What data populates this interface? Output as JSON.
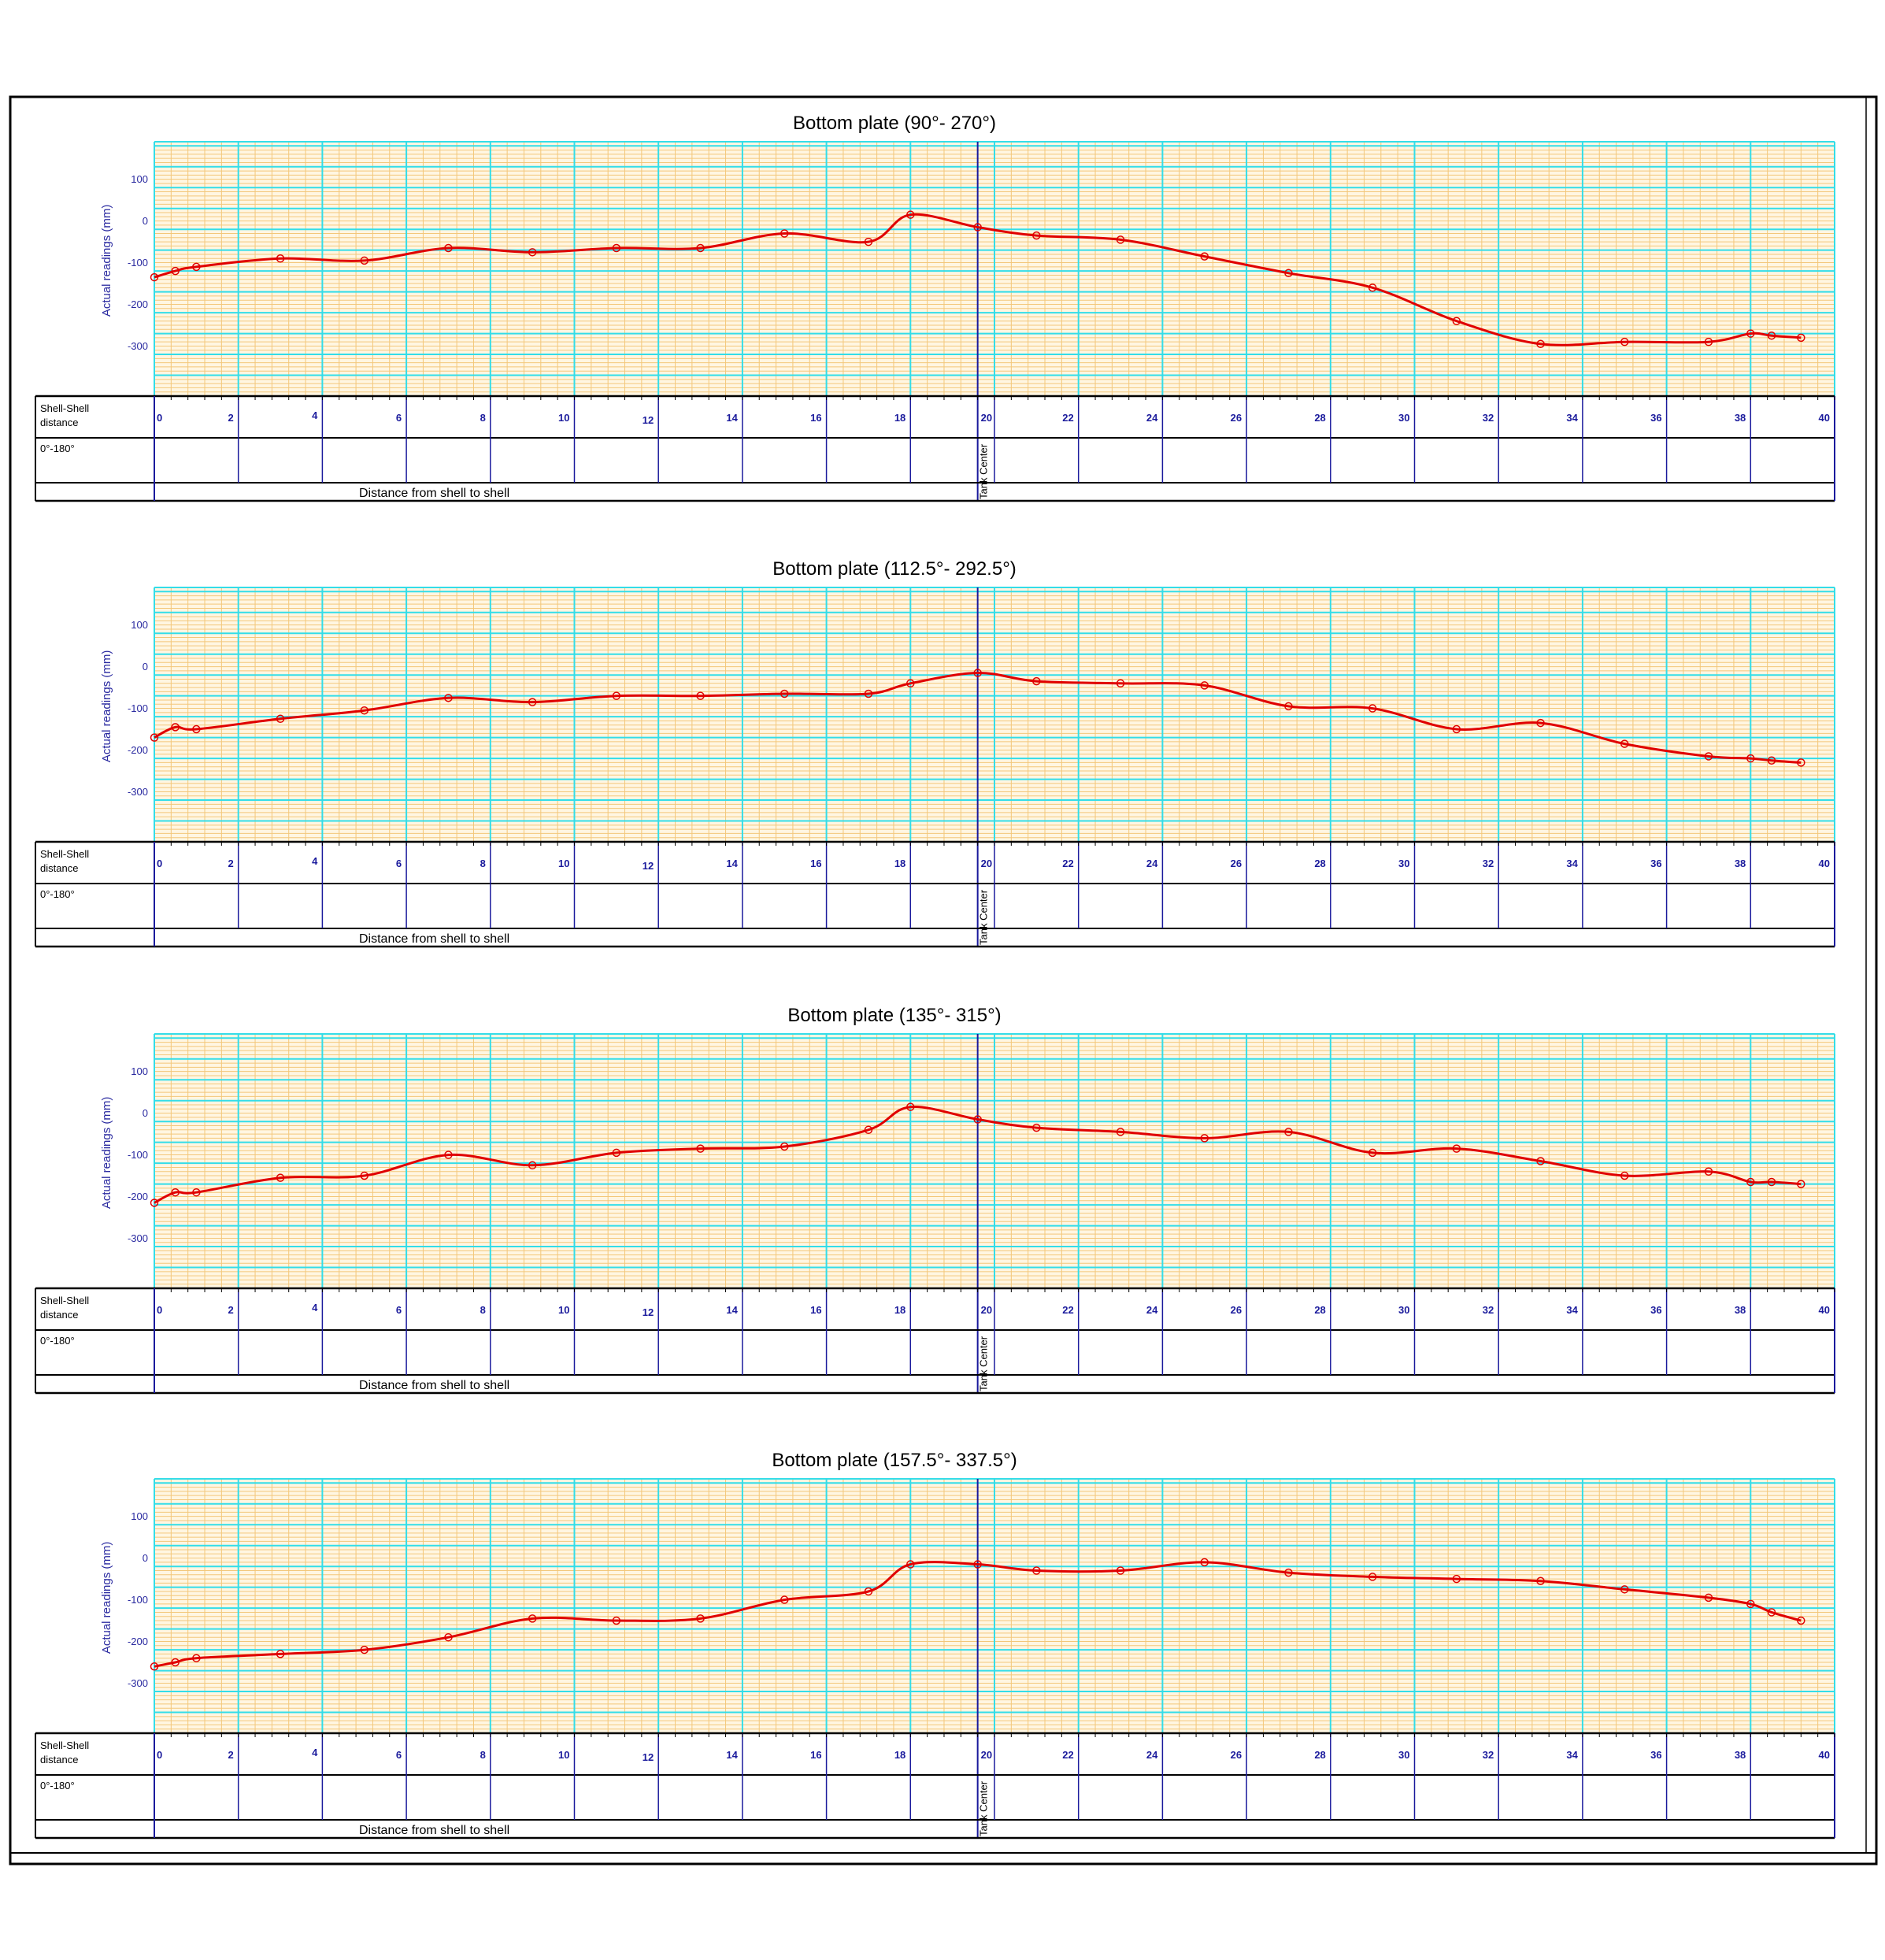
{
  "sheet": {
    "table_labels": {
      "row1": [
        "Shell-Shell",
        "distance"
      ],
      "row2": "0°-180°",
      "distance_caption": "Distance  from  shell to shell",
      "center_label": "Tank Center"
    }
  },
  "chart_data": [
    {
      "type": "line",
      "title": "Bottom plate  (90°- 270°)",
      "ylabel": "Actual readings (mm)",
      "xlim": [
        0,
        40
      ],
      "ylim": [
        -400,
        210
      ],
      "y_ticks": [
        100,
        0,
        -100,
        -200,
        -300
      ],
      "x_ticks": [
        0,
        2,
        4,
        6,
        8,
        10,
        12,
        14,
        16,
        18,
        20,
        22,
        24,
        26,
        28,
        30,
        32,
        34,
        36,
        38,
        40
      ],
      "grid": true,
      "series": [
        {
          "color": "#e00000",
          "x": [
            0,
            0.5,
            1,
            3,
            5,
            7,
            9,
            11,
            13,
            15,
            17,
            18,
            19.6,
            21,
            23,
            25,
            27,
            29,
            31,
            33,
            35,
            37,
            38,
            38.5,
            39.2
          ],
          "y": [
            -115,
            -100,
            -90,
            -70,
            -75,
            -45,
            -55,
            -45,
            -45,
            -10,
            -30,
            35,
            5,
            -15,
            -25,
            -65,
            -105,
            -140,
            -220,
            -275,
            -270,
            -270,
            -250,
            -255,
            -260
          ]
        }
      ]
    },
    {
      "type": "line",
      "title": "Bottom plate  (112.5°- 292.5°)",
      "ylabel": "Actual readings (mm)",
      "xlim": [
        0,
        40
      ],
      "ylim": [
        -400,
        210
      ],
      "y_ticks": [
        100,
        0,
        -100,
        -200,
        -300
      ],
      "x_ticks": [
        0,
        2,
        4,
        6,
        8,
        10,
        12,
        14,
        16,
        18,
        20,
        22,
        24,
        26,
        28,
        30,
        32,
        34,
        36,
        38,
        40
      ],
      "grid": true,
      "series": [
        {
          "color": "#e00000",
          "x": [
            0,
            0.5,
            1,
            3,
            5,
            7,
            9,
            11,
            13,
            15,
            17,
            18,
            19.6,
            21,
            23,
            25,
            27,
            29,
            31,
            33,
            35,
            37,
            38,
            38.5,
            39.2
          ],
          "y": [
            -150,
            -125,
            -130,
            -105,
            -85,
            -55,
            -65,
            -50,
            -50,
            -45,
            -45,
            -20,
            5,
            -15,
            -20,
            -25,
            -75,
            -80,
            -130,
            -115,
            -165,
            -195,
            -200,
            -205,
            -210
          ]
        }
      ]
    },
    {
      "type": "line",
      "title": "Bottom plate  (135°- 315°)",
      "ylabel": "Actual readings (mm)",
      "xlim": [
        0,
        40
      ],
      "ylim": [
        -400,
        210
      ],
      "y_ticks": [
        100,
        0,
        -100,
        -200,
        -300
      ],
      "x_ticks": [
        0,
        2,
        4,
        6,
        8,
        10,
        12,
        14,
        16,
        18,
        20,
        22,
        24,
        26,
        28,
        30,
        32,
        34,
        36,
        38,
        40
      ],
      "grid": true,
      "series": [
        {
          "color": "#e00000",
          "x": [
            0,
            0.5,
            1,
            3,
            5,
            7,
            9,
            11,
            13,
            15,
            17,
            18,
            19.6,
            21,
            23,
            25,
            27,
            29,
            31,
            33,
            35,
            37,
            38,
            38.5,
            39.2
          ],
          "y": [
            -195,
            -170,
            -170,
            -135,
            -130,
            -80,
            -105,
            -75,
            -65,
            -60,
            -20,
            35,
            5,
            -15,
            -25,
            -40,
            -25,
            -75,
            -65,
            -95,
            -130,
            -120,
            -145,
            -145,
            -150
          ]
        }
      ]
    },
    {
      "type": "line",
      "title": "Bottom plate  (157.5°- 337.5°)",
      "ylabel": "Actual readings (mm)",
      "xlim": [
        0,
        40
      ],
      "ylim": [
        -400,
        210
      ],
      "y_ticks": [
        100,
        0,
        -100,
        -200,
        -300
      ],
      "x_ticks": [
        0,
        2,
        4,
        6,
        8,
        10,
        12,
        14,
        16,
        18,
        20,
        22,
        24,
        26,
        28,
        30,
        32,
        34,
        36,
        38,
        40
      ],
      "grid": true,
      "series": [
        {
          "color": "#e00000",
          "x": [
            0,
            0.5,
            1,
            3,
            5,
            7,
            9,
            11,
            13,
            15,
            17,
            18,
            19.6,
            21,
            23,
            25,
            27,
            29,
            31,
            33,
            35,
            37,
            38,
            38.5,
            39.2
          ],
          "y": [
            -240,
            -230,
            -220,
            -210,
            -200,
            -170,
            -125,
            -130,
            -125,
            -80,
            -60,
            5,
            5,
            -10,
            -10,
            10,
            -15,
            -25,
            -30,
            -35,
            -55,
            -75,
            -90,
            -110,
            -130
          ]
        }
      ]
    }
  ]
}
